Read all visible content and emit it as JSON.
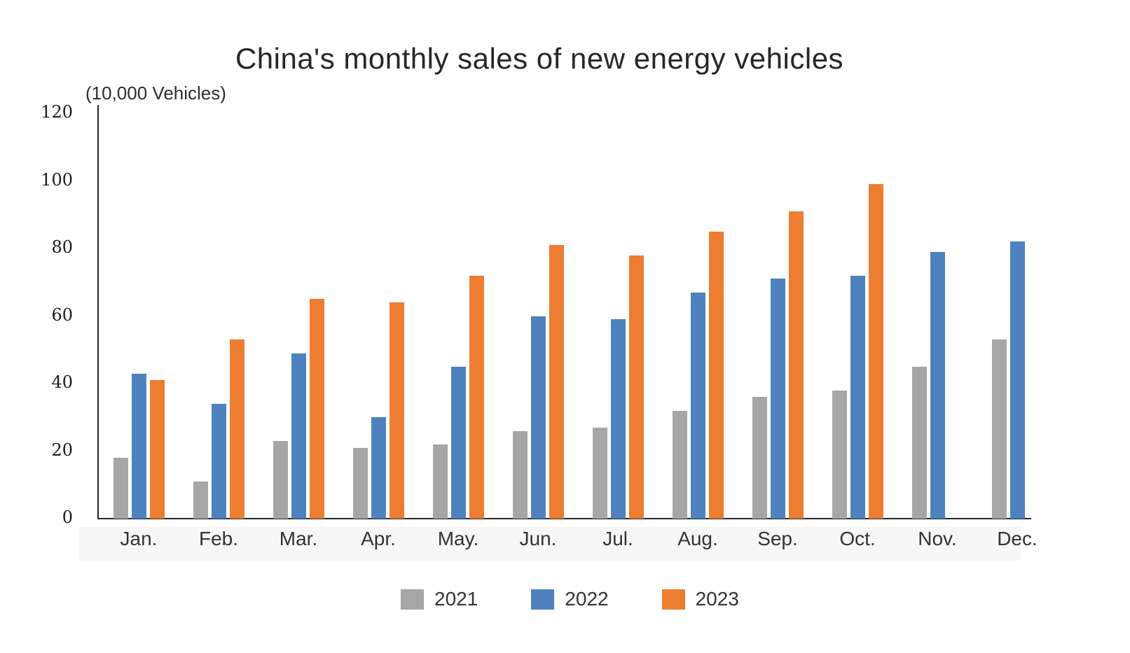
{
  "title": "China's monthly sales of new energy vehicles",
  "unit_label": "(10,000 Vehicles)",
  "chart_data": {
    "type": "bar",
    "title": "China's monthly sales of new energy vehicles",
    "ylabel": "(10,000 Vehicles)",
    "categories": [
      "Jan.",
      "Feb.",
      "Mar.",
      "Apr.",
      "May.",
      "Jun.",
      "Jul.",
      "Aug.",
      "Sep.",
      "Oct.",
      "Nov.",
      "Dec."
    ],
    "series": [
      {
        "name": "2021",
        "color": "#a6a6a6",
        "values": [
          18,
          11,
          23,
          21,
          22,
          26,
          27,
          32,
          36,
          38,
          45,
          53
        ]
      },
      {
        "name": "2022",
        "color": "#4e82be",
        "values": [
          43,
          34,
          49,
          30,
          45,
          60,
          59,
          67,
          71,
          72,
          79,
          82
        ]
      },
      {
        "name": "2023",
        "color": "#ed7d31",
        "values": [
          41,
          53,
          65,
          64,
          72,
          81,
          78,
          85,
          91,
          99,
          null,
          null
        ]
      }
    ],
    "ylim": [
      0,
      120
    ],
    "yticks": [
      0,
      20,
      40,
      60,
      80,
      100,
      120
    ],
    "grid": false,
    "legend_position": "bottom"
  },
  "colors": {
    "axis": "#262626",
    "text": "#333333",
    "label_band": "#f7f7f8"
  }
}
